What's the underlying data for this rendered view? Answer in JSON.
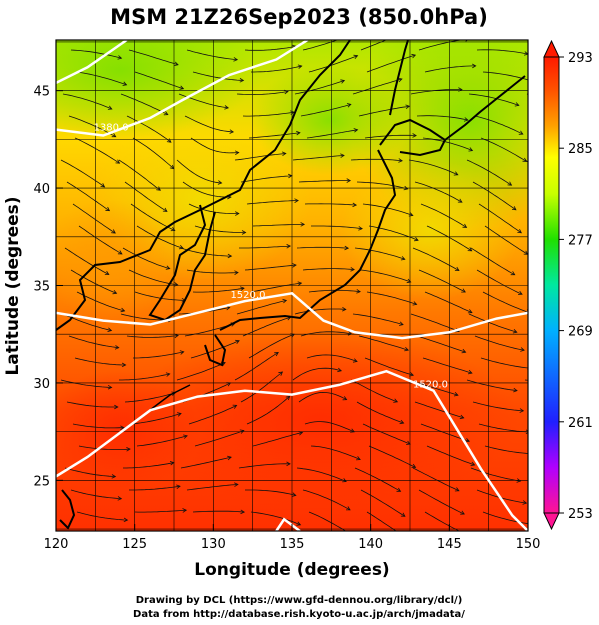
{
  "title": "MSM 21Z26Sep2023 (850.0hPa)",
  "x_axis_label": "Longitude (degrees)",
  "y_axis_label": "Latitude  (degrees)",
  "x_ticks": [
    "120",
    "125",
    "130",
    "135",
    "140",
    "145",
    "150"
  ],
  "x_tick_values": [
    120,
    125,
    130,
    135,
    140,
    145,
    150
  ],
  "y_ticks": [
    "25",
    "30",
    "35",
    "40",
    "45"
  ],
  "y_tick_values": [
    25,
    30,
    35,
    40,
    45
  ],
  "lon_range": [
    120,
    150
  ],
  "lat_range": [
    22.4,
    47.6
  ],
  "colorbar": {
    "labels": [
      "293",
      "285",
      "277",
      "269",
      "261",
      "253"
    ],
    "values": [
      293,
      285,
      277,
      269,
      261,
      253
    ],
    "range": [
      253,
      293
    ],
    "colors": [
      "#ff1493",
      "#b000ff",
      "#2020ff",
      "#00b0ff",
      "#00e8a0",
      "#20e000",
      "#c8ff00",
      "#ffff00",
      "#ffa000",
      "#ff5000",
      "#ff1a00"
    ]
  },
  "contours": [
    {
      "label": "1380.0",
      "label_lon": 123.5,
      "label_lat": 42.8,
      "points": [
        [
          120,
          43.0
        ],
        [
          123,
          42.7
        ],
        [
          126,
          43.6
        ],
        [
          128,
          44.5
        ],
        [
          131,
          45.8
        ],
        [
          134,
          46.6
        ],
        [
          136,
          47.6
        ]
      ]
    },
    {
      "label": "1380.0",
      "label_lon": null,
      "label_lat": null,
      "points": [
        [
          120,
          45.4
        ],
        [
          122,
          46.2
        ],
        [
          124.5,
          47.6
        ]
      ]
    },
    {
      "label": "1520.0",
      "label_lon": 132.2,
      "label_lat": 34.2,
      "points": [
        [
          120,
          33.6
        ],
        [
          123,
          33.2
        ],
        [
          126,
          33.0
        ],
        [
          129,
          33.6
        ],
        [
          132,
          34.2
        ],
        [
          135,
          34.6
        ],
        [
          137,
          33.2
        ],
        [
          139,
          32.6
        ],
        [
          142,
          32.3
        ],
        [
          145,
          32.6
        ],
        [
          148,
          33.3
        ],
        [
          150,
          33.6
        ]
      ]
    },
    {
      "label": "1520.0",
      "label_lon": 143.8,
      "label_lat": 29.6,
      "points": [
        [
          120,
          25.2
        ],
        [
          122,
          26.2
        ],
        [
          124,
          27.4
        ],
        [
          126,
          28.6
        ],
        [
          129,
          29.3
        ],
        [
          132,
          29.6
        ],
        [
          135,
          29.4
        ],
        [
          138,
          29.9
        ],
        [
          141,
          30.6
        ],
        [
          144,
          29.6
        ],
        [
          145.5,
          27.6
        ],
        [
          147,
          25.6
        ],
        [
          149,
          23.2
        ],
        [
          150,
          22.4
        ]
      ]
    },
    {
      "label": "1520.0",
      "label_lon": null,
      "label_lat": null,
      "points": [
        [
          134,
          22.4
        ],
        [
          134.5,
          23.0
        ],
        [
          135.5,
          22.4
        ]
      ]
    }
  ],
  "credits": [
    "Drawing by DCL (https://www.gfd-dennou.org/library/dcl/)",
    "Data from http://database.rish.kyoto-u.ac.jp/arch/jmadata/"
  ]
}
